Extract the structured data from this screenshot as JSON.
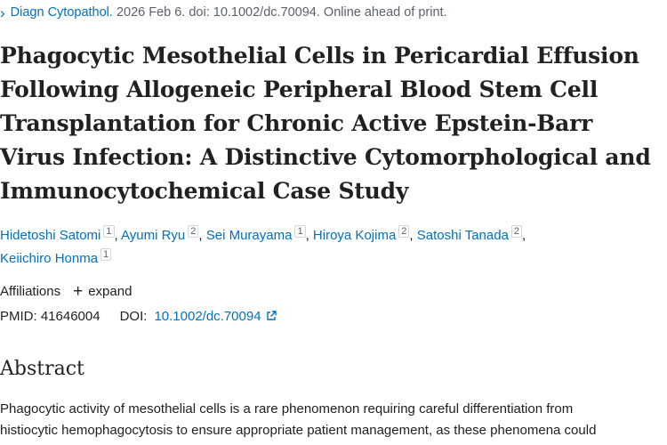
{
  "citation": {
    "journal": "Diagn Cytopathol.",
    "rest": "2026 Feb 6. doi: 10.1002/dc.70094. Online ahead of print."
  },
  "title_lines": [
    "Phagocytic Mesothelial Cells in Pericardial Effusion",
    "Following Allogeneic Peripheral Blood Stem Cell",
    "Transplantation for Chronic Active Epstein-Barr",
    "Virus Infection: A Distinctive Cytomorphological and",
    "Immunocytochemical Case Study"
  ],
  "authors": [
    {
      "name": "Hidetoshi Satomi",
      "aff": "1"
    },
    {
      "name": "Ayumi Ryu",
      "aff": "2"
    },
    {
      "name": "Sei Murayama",
      "aff": "1"
    },
    {
      "name": "Hiroya Kojima",
      "aff": "2"
    },
    {
      "name": "Satoshi Tanada",
      "aff": "2"
    },
    {
      "name": "Keiichiro Honma",
      "aff": "1"
    }
  ],
  "affiliations": {
    "label": "Affiliations",
    "toggle_label": "expand"
  },
  "ids": {
    "pmid_label": "PMID:",
    "pmid": "41646004",
    "doi_label": "DOI:",
    "doi": "10.1002/dc.70094"
  },
  "abstract": {
    "heading": "Abstract",
    "lines": [
      "Phagocytic activity of mesothelial cells is a rare phenomenon requiring careful differentiation from",
      "histiocytic hemophagocytosis to ensure appropriate patient management, as these phenomena could"
    ]
  },
  "colors": {
    "link": "#0071bc",
    "text": "#212121",
    "muted": "#5b616b"
  },
  "icons": {
    "citation": "chevron-right-icon",
    "expand": "plus-icon",
    "doi": "external-link-icon"
  }
}
